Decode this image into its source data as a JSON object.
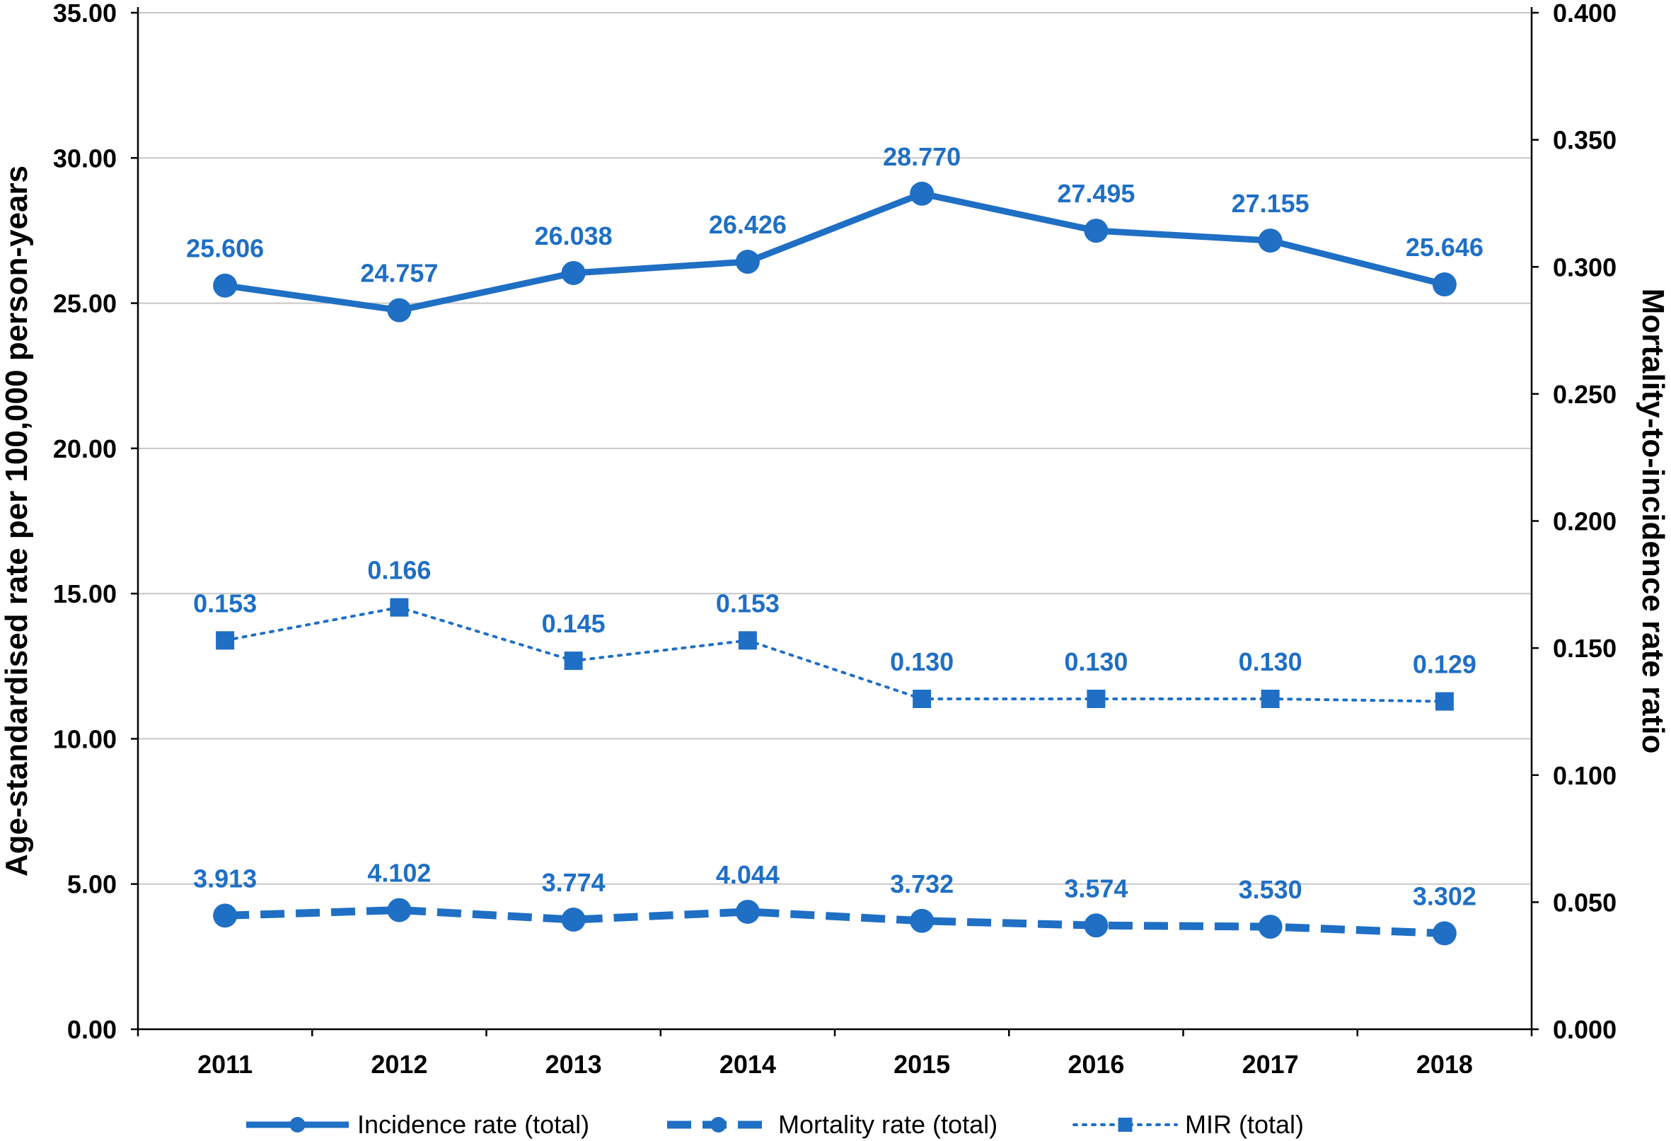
{
  "chart_data": {
    "type": "line",
    "title": "",
    "categories": [
      "2011",
      "2012",
      "2013",
      "2014",
      "2015",
      "2016",
      "2017",
      "2018"
    ],
    "y_left": {
      "label": "Age-standardised rate per 100,000 person-years",
      "range": [
        0,
        35
      ],
      "ticks": [
        "0.00",
        "5.00",
        "10.00",
        "15.00",
        "20.00",
        "25.00",
        "30.00",
        "35.00"
      ]
    },
    "y_right": {
      "label": "Mortality-to-incidence rate ratio",
      "range": [
        0,
        0.4
      ],
      "ticks": [
        "0.000",
        "0.050",
        "0.100",
        "0.150",
        "0.200",
        "0.250",
        "0.300",
        "0.350",
        "0.400"
      ]
    },
    "grid": true,
    "legend_position": "bottom",
    "colors": {
      "series": "#1f6fc4",
      "grid": "#c8c8c8",
      "axis": "#000000"
    },
    "series": [
      {
        "name": "Incidence rate (total)",
        "axis": "left",
        "style": "solid",
        "marker": "circle",
        "values": [
          25.606,
          24.757,
          26.038,
          26.426,
          28.77,
          27.495,
          27.155,
          25.646
        ],
        "labels": [
          "25.606",
          "24.757",
          "26.038",
          "26.426",
          "28.770",
          "27.495",
          "27.155",
          "25.646"
        ]
      },
      {
        "name": "Mortality rate (total)",
        "axis": "left",
        "style": "dashed",
        "marker": "circle",
        "values": [
          3.913,
          4.102,
          3.774,
          4.044,
          3.732,
          3.574,
          3.53,
          3.302
        ],
        "labels": [
          "3.913",
          "4.102",
          "3.774",
          "4.044",
          "3.732",
          "3.574",
          "3.530",
          "3.302"
        ]
      },
      {
        "name": "MIR (total)",
        "axis": "right",
        "style": "dotted",
        "marker": "square",
        "values": [
          0.153,
          0.166,
          0.145,
          0.153,
          0.13,
          0.13,
          0.13,
          0.129
        ],
        "labels": [
          "0.153",
          "0.166",
          "0.145",
          "0.153",
          "0.130",
          "0.130",
          "0.130",
          "0.129"
        ]
      }
    ]
  }
}
